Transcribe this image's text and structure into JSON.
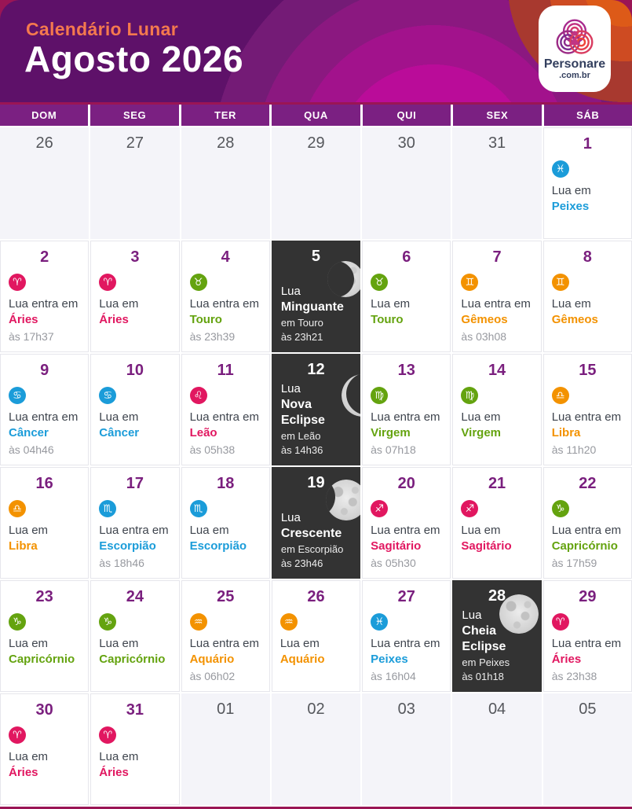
{
  "header": {
    "kicker": "Calendário Lunar",
    "title": "Agosto 2026",
    "logo": {
      "name": "Personare",
      "domain": ".com.br"
    }
  },
  "weekdays": [
    "DOM",
    "SEG",
    "TER",
    "QUA",
    "QUI",
    "SEX",
    "SÁB"
  ],
  "colors": {
    "fire": "#E11760",
    "earth": "#64A30F",
    "air": "#F39200",
    "water": "#1B9CD9",
    "date_number": "#7A1F7E",
    "outside_date": "#55575C",
    "body_text": "#3F454E",
    "time_text": "#97999F",
    "dark_cell": "#333333",
    "weekday_bar": "#7B2082",
    "header_purple": "#5E1169",
    "header_kicker": "#F4794E",
    "page_magenta": "#9A1555",
    "outside_cell": "#F4F4F9"
  },
  "weeks": [
    [
      {
        "date": "26",
        "type": "outside"
      },
      {
        "date": "27",
        "type": "outside"
      },
      {
        "date": "28",
        "type": "outside"
      },
      {
        "date": "29",
        "type": "outside"
      },
      {
        "date": "30",
        "type": "outside"
      },
      {
        "date": "31",
        "type": "outside"
      },
      {
        "date": "1",
        "type": "event",
        "prefix": "Lua em",
        "sign": "Peixes",
        "element": "water",
        "icon": "pisces",
        "glyph": "♓"
      }
    ],
    [
      {
        "date": "2",
        "type": "event",
        "prefix": "Lua entra em",
        "sign": "Áries",
        "element": "fire",
        "icon": "aries",
        "glyph": "♈",
        "time": "às 17h37"
      },
      {
        "date": "3",
        "type": "event",
        "prefix": "Lua em",
        "sign": "Áries",
        "element": "fire",
        "icon": "aries",
        "glyph": "♈"
      },
      {
        "date": "4",
        "type": "event",
        "prefix": "Lua entra em",
        "sign": "Touro",
        "element": "earth",
        "icon": "taurus",
        "glyph": "♉",
        "time": "às 23h39"
      },
      {
        "date": "5",
        "type": "moon",
        "moon": "waning-crescent",
        "line1": "Lua",
        "phase": "Minguante",
        "detail": "em Touro",
        "time": "às 23h21"
      },
      {
        "date": "6",
        "type": "event",
        "prefix": "Lua em",
        "sign": "Touro",
        "element": "earth",
        "icon": "taurus",
        "glyph": "♉"
      },
      {
        "date": "7",
        "type": "event",
        "prefix": "Lua entra em",
        "sign": "Gêmeos",
        "element": "air",
        "icon": "gemini",
        "glyph": "♊",
        "time": "às 03h08"
      },
      {
        "date": "8",
        "type": "event",
        "prefix": "Lua em",
        "sign": "Gêmeos",
        "element": "air",
        "icon": "gemini",
        "glyph": "♊"
      }
    ],
    [
      {
        "date": "9",
        "type": "event",
        "prefix": "Lua entra em",
        "sign": "Câncer",
        "element": "water",
        "icon": "cancer",
        "glyph": "♋",
        "time": "às 04h46"
      },
      {
        "date": "10",
        "type": "event",
        "prefix": "Lua em",
        "sign": "Câncer",
        "element": "water",
        "icon": "cancer",
        "glyph": "♋"
      },
      {
        "date": "11",
        "type": "event",
        "prefix": "Lua entra em",
        "sign": "Leão",
        "element": "fire",
        "icon": "leo",
        "glyph": "♌",
        "time": "às 05h38"
      },
      {
        "date": "12",
        "type": "moon",
        "moon": "new-eclipse",
        "line1": "Lua",
        "phase": "Nova Eclipse",
        "detail": "em Leão",
        "time": "às 14h36"
      },
      {
        "date": "13",
        "type": "event",
        "prefix": "Lua entra em",
        "sign": "Virgem",
        "element": "earth",
        "icon": "virgo",
        "glyph": "♍",
        "time": "às 07h18"
      },
      {
        "date": "14",
        "type": "event",
        "prefix": "Lua em",
        "sign": "Virgem",
        "element": "earth",
        "icon": "virgo",
        "glyph": "♍"
      },
      {
        "date": "15",
        "type": "event",
        "prefix": "Lua entra em",
        "sign": "Libra",
        "element": "air",
        "icon": "libra",
        "glyph": "♎",
        "time": "às 11h20"
      }
    ],
    [
      {
        "date": "16",
        "type": "event",
        "prefix": "Lua em",
        "sign": "Libra",
        "element": "air",
        "icon": "libra",
        "glyph": "♎"
      },
      {
        "date": "17",
        "type": "event",
        "prefix": "Lua entra em",
        "sign": "Escorpião",
        "element": "water",
        "icon": "scorpio",
        "glyph": "♏",
        "time": "às 18h46"
      },
      {
        "date": "18",
        "type": "event",
        "prefix": "Lua em",
        "sign": "Escorpião",
        "element": "water",
        "icon": "scorpio",
        "glyph": "♏"
      },
      {
        "date": "19",
        "type": "moon",
        "moon": "waxing-gibbous",
        "line1": "Lua",
        "phase": "Crescente",
        "detail": "em Escorpião",
        "time": "às 23h46"
      },
      {
        "date": "20",
        "type": "event",
        "prefix": "Lua entra em",
        "sign": "Sagitário",
        "element": "fire",
        "icon": "sagittarius",
        "glyph": "♐",
        "time": "às 05h30"
      },
      {
        "date": "21",
        "type": "event",
        "prefix": "Lua em",
        "sign": "Sagitário",
        "element": "fire",
        "icon": "sagittarius",
        "glyph": "♐"
      },
      {
        "date": "22",
        "type": "event",
        "prefix": "Lua entra em",
        "sign": "Capricórnio",
        "element": "earth",
        "icon": "capricorn",
        "glyph": "♑",
        "time": "às 17h59"
      }
    ],
    [
      {
        "date": "23",
        "type": "event",
        "prefix": "Lua em",
        "sign": "Capricórnio",
        "element": "earth",
        "icon": "capricorn",
        "glyph": "♑"
      },
      {
        "date": "24",
        "type": "event",
        "prefix": "Lua em",
        "sign": "Capricórnio",
        "element": "earth",
        "icon": "capricorn",
        "glyph": "♑"
      },
      {
        "date": "25",
        "type": "event",
        "prefix": "Lua entra em",
        "sign": "Aquário",
        "element": "air",
        "icon": "aquarius",
        "glyph": "♒",
        "time": "às 06h02"
      },
      {
        "date": "26",
        "type": "event",
        "prefix": "Lua em",
        "sign": "Aquário",
        "element": "air",
        "icon": "aquarius",
        "glyph": "♒"
      },
      {
        "date": "27",
        "type": "event",
        "prefix": "Lua entra em",
        "sign": "Peixes",
        "element": "water",
        "icon": "pisces",
        "glyph": "♓",
        "time": "às 16h04"
      },
      {
        "date": "28",
        "type": "moon",
        "moon": "full",
        "line1": "Lua",
        "phase": "Cheia Eclipse",
        "detail": "em Peixes",
        "time": "às 01h18"
      },
      {
        "date": "29",
        "type": "event",
        "prefix": "Lua entra em",
        "sign": "Áries",
        "element": "fire",
        "icon": "aries",
        "glyph": "♈",
        "time": "às 23h38"
      }
    ],
    [
      {
        "date": "30",
        "type": "event",
        "prefix": "Lua em",
        "sign": "Áries",
        "element": "fire",
        "icon": "aries",
        "glyph": "♈"
      },
      {
        "date": "31",
        "type": "event",
        "prefix": "Lua em",
        "sign": "Áries",
        "element": "fire",
        "icon": "aries",
        "glyph": "♈"
      },
      {
        "date": "01",
        "type": "outside"
      },
      {
        "date": "02",
        "type": "outside"
      },
      {
        "date": "03",
        "type": "outside"
      },
      {
        "date": "04",
        "type": "outside"
      },
      {
        "date": "05",
        "type": "outside"
      }
    ]
  ]
}
